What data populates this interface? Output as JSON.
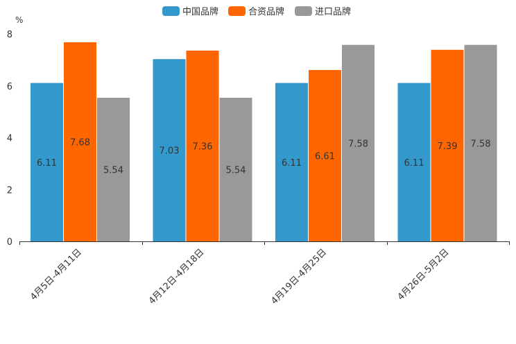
{
  "chart_data": {
    "type": "bar",
    "title": "",
    "xlabel": "",
    "ylabel": "%",
    "ylim": [
      0,
      8
    ],
    "yticks": [
      0,
      2,
      4,
      6,
      8
    ],
    "grid": false,
    "legend_position": "top-center",
    "categories": [
      "4月5日-4月11日",
      "4月12日-4月18日",
      "4月19日-4月25日",
      "4月26日-5月2日"
    ],
    "series": [
      {
        "name": "中国品牌",
        "color": "#3399CC",
        "values": [
          6.11,
          7.03,
          6.11,
          6.11
        ]
      },
      {
        "name": "合资品牌",
        "color": "#FF6600",
        "values": [
          7.68,
          7.36,
          6.61,
          7.39
        ]
      },
      {
        "name": "进口品牌",
        "color": "#999999",
        "values": [
          5.54,
          5.54,
          7.58,
          7.58
        ]
      }
    ]
  }
}
